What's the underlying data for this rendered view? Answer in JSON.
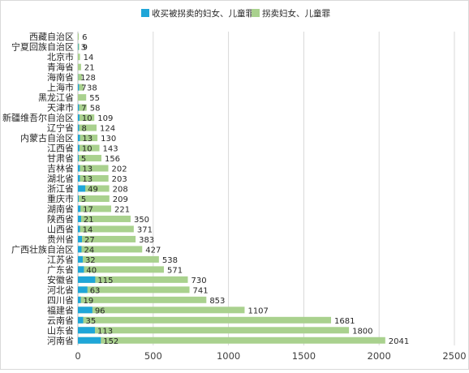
{
  "chart_data": {
    "type": "bar",
    "orientation": "horizontal",
    "title": "",
    "xlabel": "",
    "ylabel": "",
    "xlim": [
      0,
      2500
    ],
    "x_ticks": [
      0,
      500,
      1000,
      1500,
      2000,
      2500
    ],
    "grid": true,
    "legend_position": "top",
    "categories": [
      "西藏自治区",
      "宁夏回族自治区",
      "北京市",
      "青海省",
      "海南省",
      "上海市",
      "黑龙江省",
      "天津市",
      "新疆维吾尔自治区",
      "辽宁省",
      "内蒙古自治区",
      "江西省",
      "甘肃省",
      "吉林省",
      "湖北省",
      "浙江省",
      "重庆市",
      "湖南省",
      "陕西省",
      "山西省",
      "贵州省",
      "广西壮族自治区",
      "江苏省",
      "广东省",
      "安徽省",
      "河北省",
      "四川省",
      "福建省",
      "云南省",
      "山东省",
      "河南省"
    ],
    "series": [
      {
        "name": "收买被拐卖的妇女、儿童罪",
        "color": "#1fa6d8",
        "values": [
          0,
          3,
          0,
          0,
          1,
          7,
          0,
          7,
          10,
          8,
          13,
          10,
          5,
          13,
          13,
          49,
          5,
          17,
          21,
          14,
          27,
          24,
          32,
          40,
          115,
          63,
          19,
          96,
          35,
          113,
          152
        ],
        "labels": [
          "",
          "3",
          "",
          "",
          "1",
          "7",
          "",
          "7",
          "10",
          "8",
          "13",
          "10",
          "5",
          "13",
          "13",
          "49",
          "5",
          "17",
          "21",
          "14",
          "27",
          "24",
          "32",
          "40",
          "115",
          "63",
          "19",
          "96",
          "35",
          "113",
          "152"
        ]
      },
      {
        "name": "拐卖妇女、儿童罪",
        "color": "#a9d18e",
        "values": [
          6,
          9,
          14,
          21,
          28,
          38,
          55,
          58,
          109,
          124,
          130,
          143,
          156,
          202,
          203,
          208,
          209,
          221,
          350,
          371,
          383,
          427,
          538,
          571,
          730,
          741,
          853,
          1107,
          1681,
          1800,
          2041
        ],
        "labels": [
          "6",
          "9",
          "14",
          "21",
          "28",
          "38",
          "55",
          "58",
          "109",
          "124",
          "130",
          "143",
          "156",
          "202",
          "203",
          "208",
          "209",
          "221",
          "350",
          "371",
          "383",
          "427",
          "538",
          "571",
          "730",
          "741",
          "853",
          "1107",
          "1681",
          "1800",
          "2041"
        ]
      }
    ]
  }
}
